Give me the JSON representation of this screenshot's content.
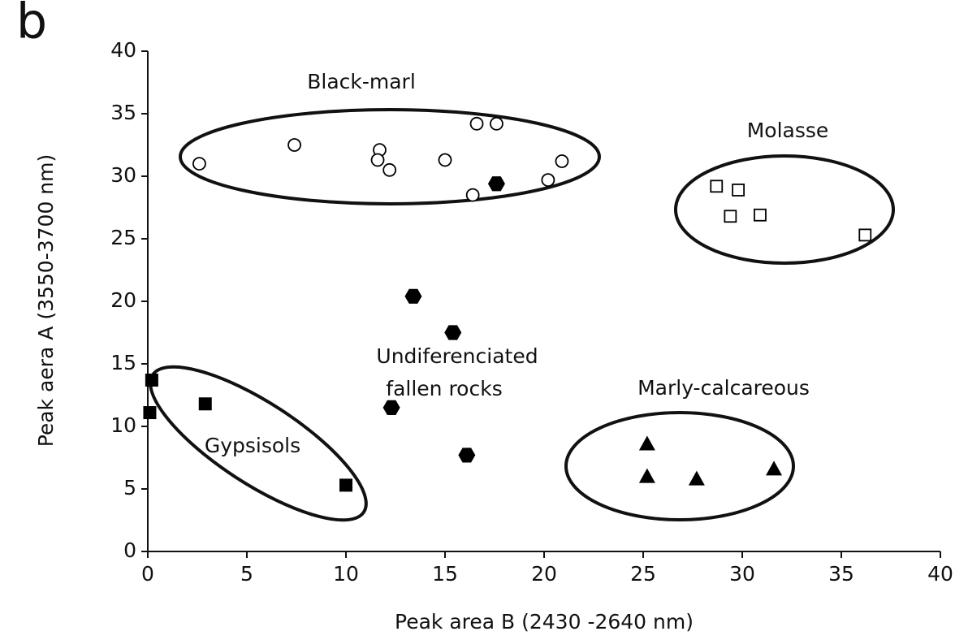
{
  "chart_data": {
    "type": "scatter",
    "panel_label": "b",
    "x_label": "Peak area  B (2430 -2640 nm)",
    "y_label": "Peak aera A (3550-3700 nm)",
    "annotations": [
      "Black-marl",
      "Molasse",
      "Undiferenciated",
      "fallen rocks",
      "Marly-calcareous",
      "Gypsisols"
    ],
    "xlim": [
      0,
      40
    ],
    "xticks": [
      0,
      5,
      10,
      15,
      20,
      25,
      30,
      35,
      40
    ],
    "ylim": [
      0,
      40
    ],
    "yticks": [
      0,
      5,
      10,
      15,
      20,
      25,
      30,
      35,
      40
    ],
    "grid": false,
    "series": [
      {
        "marker": "open-circle",
        "color": "#000000",
        "x": [
          2.6,
          7.4,
          11.7,
          11.6,
          12.2,
          15.0,
          16.6,
          17.6,
          16.4,
          20.2,
          20.9
        ],
        "values": [
          31.0,
          32.5,
          32.1,
          31.3,
          30.5,
          31.3,
          34.2,
          34.2,
          28.5,
          29.7,
          31.2
        ]
      },
      {
        "marker": "hexagon",
        "color": "#000000",
        "x": [
          17.6,
          13.4,
          15.4,
          12.3,
          16.1
        ],
        "values": [
          29.4,
          20.4,
          17.5,
          11.5,
          7.7
        ]
      },
      {
        "marker": "open-square",
        "color": "#000000",
        "x": [
          28.7,
          29.8,
          29.4,
          30.9,
          36.2
        ],
        "values": [
          29.2,
          28.9,
          26.8,
          26.9,
          25.3
        ]
      },
      {
        "marker": "square",
        "color": "#000000",
        "x": [
          0.2,
          0.1,
          2.9,
          10.0
        ],
        "values": [
          13.7,
          11.1,
          11.8,
          5.3
        ]
      },
      {
        "marker": "triangle",
        "color": "#000000",
        "x": [
          25.2,
          25.2,
          27.7,
          31.6
        ],
        "values": [
          8.6,
          6.0,
          5.8,
          6.6
        ]
      }
    ]
  }
}
